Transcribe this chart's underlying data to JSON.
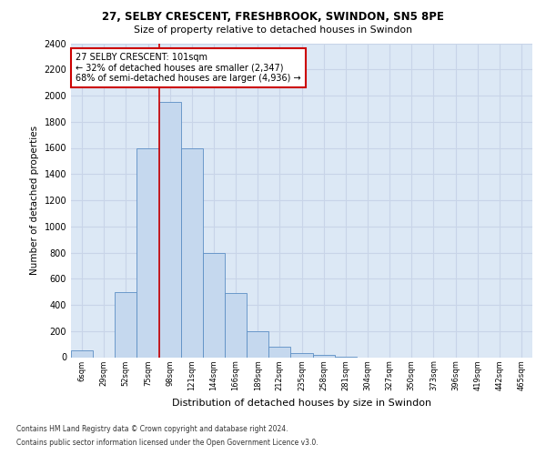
{
  "title1": "27, SELBY CRESCENT, FRESHBROOK, SWINDON, SN5 8PE",
  "title2": "Size of property relative to detached houses in Swindon",
  "xlabel": "Distribution of detached houses by size in Swindon",
  "ylabel": "Number of detached properties",
  "categories": [
    "6sqm",
    "29sqm",
    "52sqm",
    "75sqm",
    "98sqm",
    "121sqm",
    "144sqm",
    "166sqm",
    "189sqm",
    "212sqm",
    "235sqm",
    "258sqm",
    "281sqm",
    "304sqm",
    "327sqm",
    "350sqm",
    "373sqm",
    "396sqm",
    "419sqm",
    "442sqm",
    "465sqm"
  ],
  "values": [
    50,
    0,
    500,
    1600,
    1950,
    1600,
    800,
    490,
    200,
    80,
    30,
    20,
    5,
    0,
    0,
    0,
    0,
    0,
    0,
    0,
    0
  ],
  "bar_color": "#c5d8ee",
  "bar_edge_color": "#5b8ec4",
  "vline_color": "#cc0000",
  "vline_x_idx": 4,
  "annotation_text": "27 SELBY CRESCENT: 101sqm\n← 32% of detached houses are smaller (2,347)\n68% of semi-detached houses are larger (4,936) →",
  "annotation_box_color": "#ffffff",
  "annotation_box_edge": "#cc0000",
  "ylim": [
    0,
    2400
  ],
  "yticks": [
    0,
    200,
    400,
    600,
    800,
    1000,
    1200,
    1400,
    1600,
    1800,
    2000,
    2200,
    2400
  ],
  "grid_color": "#c8d4e8",
  "bg_color": "#dce8f5",
  "footnote1": "Contains HM Land Registry data © Crown copyright and database right 2024.",
  "footnote2": "Contains public sector information licensed under the Open Government Licence v3.0."
}
